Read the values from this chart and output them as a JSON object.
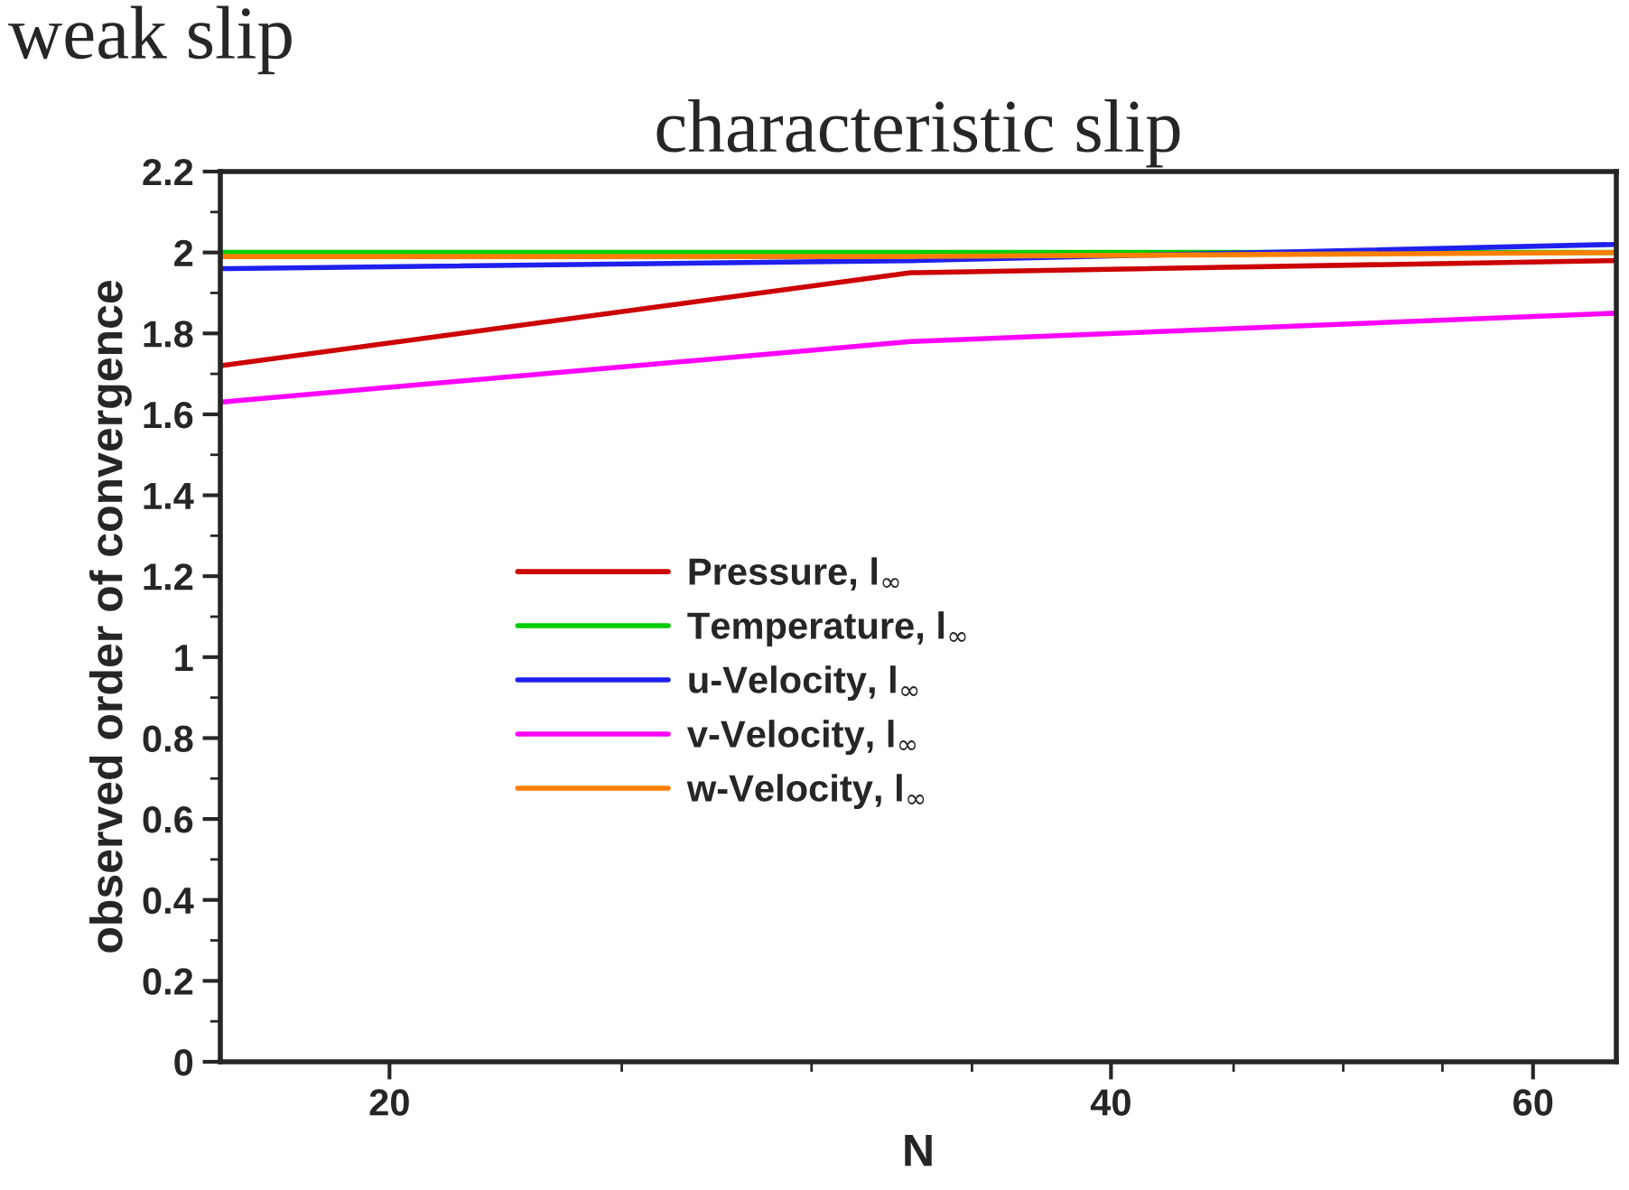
{
  "chart_data": {
    "type": "line",
    "title": "characteristic slip",
    "annotations": [
      "weak slip"
    ],
    "xlabel": "N",
    "ylabel": "observed order of convergence",
    "x": [
      17,
      33,
      65
    ],
    "log": "x",
    "xlim": [
      17,
      65
    ],
    "ylim": [
      0,
      2.2
    ],
    "xticks": [
      20,
      {
        "value": 25,
        "label": null
      },
      {
        "value": 30,
        "label": null
      },
      {
        "value": 35,
        "label": null
      },
      40,
      {
        "value": 45,
        "label": null
      },
      {
        "value": 50,
        "label": null
      },
      {
        "value": 55,
        "label": null
      },
      60
    ],
    "yticks": [
      0,
      {
        "value": 0.1,
        "label": null
      },
      0.2,
      {
        "value": 0.3,
        "label": null
      },
      0.4,
      {
        "value": 0.5,
        "label": null
      },
      0.6,
      {
        "value": 0.7,
        "label": null
      },
      0.8,
      {
        "value": 0.9,
        "label": null
      },
      1,
      {
        "value": 1.1,
        "label": null
      },
      1.2,
      {
        "value": 1.3,
        "label": null
      },
      1.4,
      {
        "value": 1.5,
        "label": null
      },
      1.6,
      {
        "value": 1.7,
        "label": null
      },
      1.8,
      {
        "value": 1.9,
        "label": null
      },
      2,
      {
        "value": 2.1,
        "label": null
      },
      2.2
    ],
    "grid": false,
    "legend": "center",
    "marker": "none",
    "line_style": "solid",
    "series": [
      {
        "name": "Pressure, l$_{∞}$",
        "color": "#cc0000",
        "values": [
          1.72,
          1.95,
          1.98
        ]
      },
      {
        "name": "Temperature, l$_{∞}$",
        "color": "#00cc00",
        "values": [
          2.0,
          2.0,
          2.0
        ]
      },
      {
        "name": "u-Velocity, l$_{∞}$",
        "color": "#2020ee",
        "values": [
          1.96,
          1.98,
          2.02
        ]
      },
      {
        "name": "v-Velocity, l$_{∞}$",
        "color": "#ff00ff",
        "values": [
          1.63,
          1.78,
          1.85
        ]
      },
      {
        "name": "w-Velocity, l$_{∞}$",
        "color": "#ff8000",
        "values": [
          1.99,
          1.99,
          2.0
        ]
      }
    ]
  }
}
